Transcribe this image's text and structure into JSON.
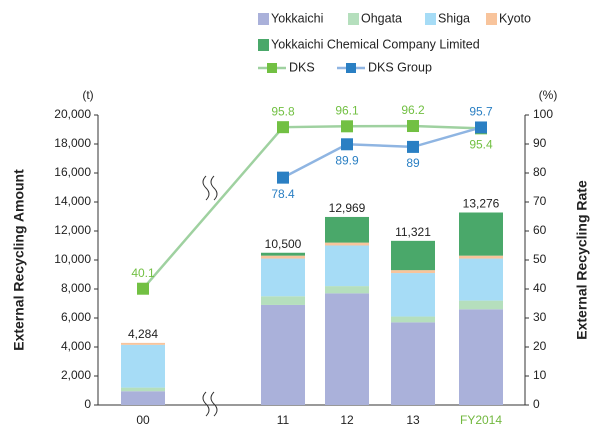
{
  "chart_data": {
    "type": "bar",
    "stacked": true,
    "categories": [
      "00",
      "11",
      "12",
      "13",
      "FY2014"
    ],
    "series": [
      {
        "name": "Yokkaichi",
        "color": "#aab1da",
        "values": [
          950,
          6900,
          7700,
          5700,
          6600
        ]
      },
      {
        "name": "Ohgata",
        "color": "#b5dfbd",
        "values": [
          250,
          600,
          500,
          400,
          600
        ]
      },
      {
        "name": "Shiga",
        "color": "#a6dcf6",
        "values": [
          2950,
          2600,
          2800,
          3000,
          2900
        ]
      },
      {
        "name": "Kyoto",
        "color": "#f8c49c",
        "values": [
          134,
          200,
          200,
          200,
          200
        ]
      },
      {
        "name": "Yokkaichi Chemical Company Limited",
        "color": "#4aa86a",
        "values": [
          0,
          200,
          1769,
          2021,
          2976
        ]
      },
      {
        "name": "DKS",
        "type": "line",
        "axis": "y2",
        "color": "#9fd1a0",
        "marker_color": "#72c043",
        "values": [
          40.1,
          95.8,
          96.1,
          96.2,
          95.4
        ]
      },
      {
        "name": "DKS Group",
        "type": "line",
        "axis": "y2",
        "color": "#8fb5e2",
        "marker_color": "#2a7fc3",
        "values": [
          null,
          78.4,
          89.9,
          89.0,
          95.7
        ]
      }
    ],
    "totals": [
      4284,
      10500,
      12969,
      11321,
      13276
    ],
    "total_labels": [
      "4,284",
      "10,500",
      "12,969",
      "11,321",
      "13,276"
    ],
    "ylabel": "External Recycling Amount",
    "yunit": "(t)",
    "y2label": "External Recycling Rate",
    "y2unit": "(%)",
    "ylim": [
      0,
      20000
    ],
    "yticks": [
      0,
      {
        "value": 2000,
        "label": "2,000"
      },
      {
        "value": 4000,
        "label": "4,000"
      },
      {
        "value": 6000,
        "label": "6,000"
      },
      {
        "value": 8000,
        "label": "8,000"
      },
      {
        "value": 10000,
        "label": "10,000"
      },
      {
        "value": 12000,
        "label": "12,000"
      },
      {
        "value": 14000,
        "label": "14,000"
      },
      {
        "value": 16000,
        "label": "16,000"
      },
      {
        "value": 18000,
        "label": "18,000"
      },
      {
        "value": 20000,
        "label": "20,000"
      }
    ],
    "y2lim": [
      0,
      100
    ],
    "y2ticks": [
      0,
      10,
      20,
      30,
      40,
      50,
      60,
      70,
      80,
      90,
      100
    ],
    "highlight_category_color": "#72b83f"
  }
}
